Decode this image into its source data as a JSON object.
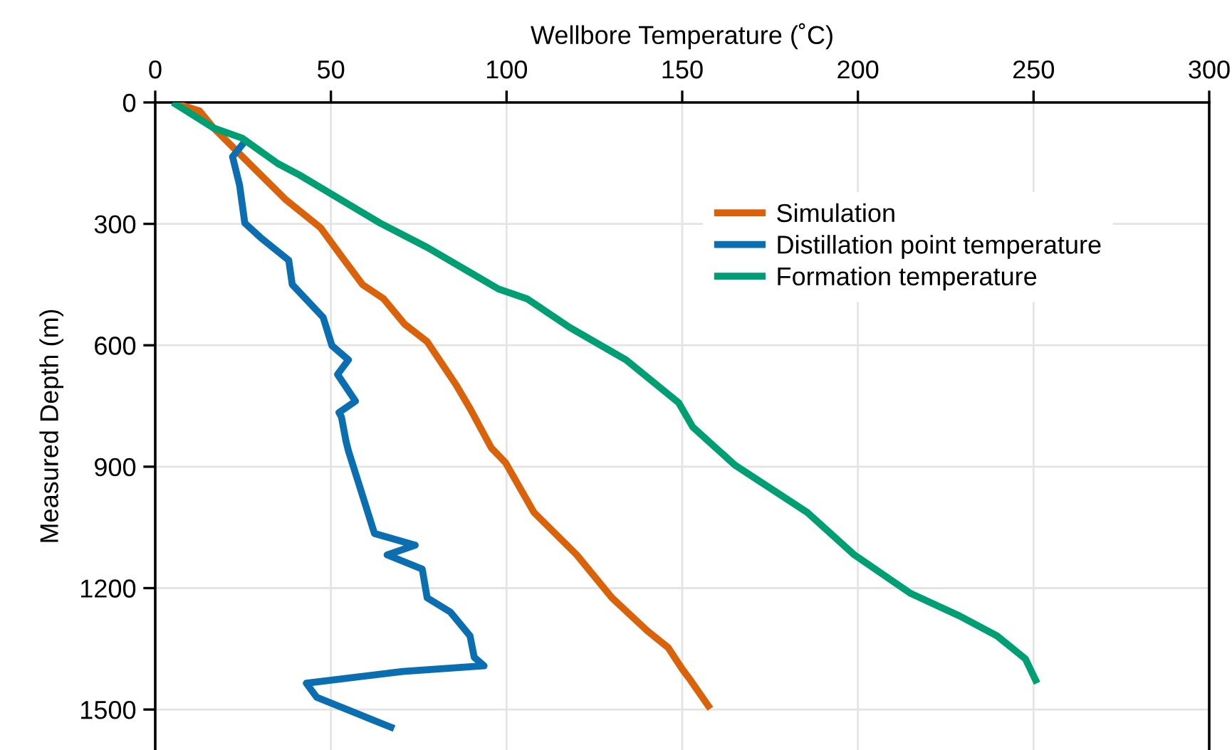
{
  "chart_data": {
    "type": "line",
    "xlabel": "Wellbore Temperature (˚C)",
    "ylabel": "Measured Depth (m)",
    "xlim": [
      0,
      300
    ],
    "xticks": [
      0,
      50,
      100,
      150,
      200,
      250,
      300
    ],
    "ylim": [
      1600,
      0
    ],
    "yticks": [
      0,
      300,
      600,
      900,
      1200,
      1500
    ],
    "grid": true,
    "legend": "top right",
    "line_style": "solid",
    "marker": "none",
    "series": [
      {
        "name": "Simulation",
        "color": "#d9620a",
        "x": [
          5,
          12.6,
          16.6,
          26.8,
          37,
          47,
          53,
          59,
          65,
          71,
          77.4,
          85.5,
          89.6,
          95.7,
          99.7,
          107.8,
          120,
          130,
          140,
          146,
          150,
          152.4,
          158
        ],
        "values": [
          0,
          21,
          63,
          151,
          239,
          309,
          380,
          450,
          485,
          548,
          591,
          696,
          756,
          854,
          890,
          1013,
          1118,
          1224,
          1305,
          1347,
          1400,
          1428,
          1498
        ]
      },
      {
        "name": "Distillation point temperature",
        "color": "#0a6eb0",
        "x": [
          26,
          22,
          24,
          25.5,
          30,
          38,
          39,
          47.8,
          50.3,
          55,
          51.9,
          57,
          52.3,
          53,
          54.3,
          55,
          62.4,
          74,
          66,
          76,
          77.4,
          84,
          89.6,
          90.8,
          93.6,
          70.5,
          43,
          46,
          68
        ],
        "values": [
          91,
          134,
          204,
          298,
          334,
          390,
          450,
          531,
          601,
          636,
          672,
          738,
          766,
          777,
          837,
          861,
          1065,
          1094,
          1118,
          1153,
          1224,
          1259,
          1318,
          1371,
          1392,
          1406,
          1435,
          1470,
          1547
        ]
      },
      {
        "name": "Formation temperature",
        "color": "#009e73",
        "x": [
          5,
          16.6,
          24.7,
          34.9,
          41,
          64,
          77.4,
          90.8,
          97.7,
          105.8,
          118,
          134,
          149,
          153,
          165,
          185.6,
          199,
          215,
          229,
          239.6,
          247.7,
          251
        ],
        "values": [
          0,
          63,
          88,
          151,
          179,
          298,
          358,
          426,
          461,
          485,
          556,
          636,
          742,
          802,
          896,
          1013,
          1118,
          1213,
          1269,
          1318,
          1375,
          1435
        ]
      }
    ]
  }
}
